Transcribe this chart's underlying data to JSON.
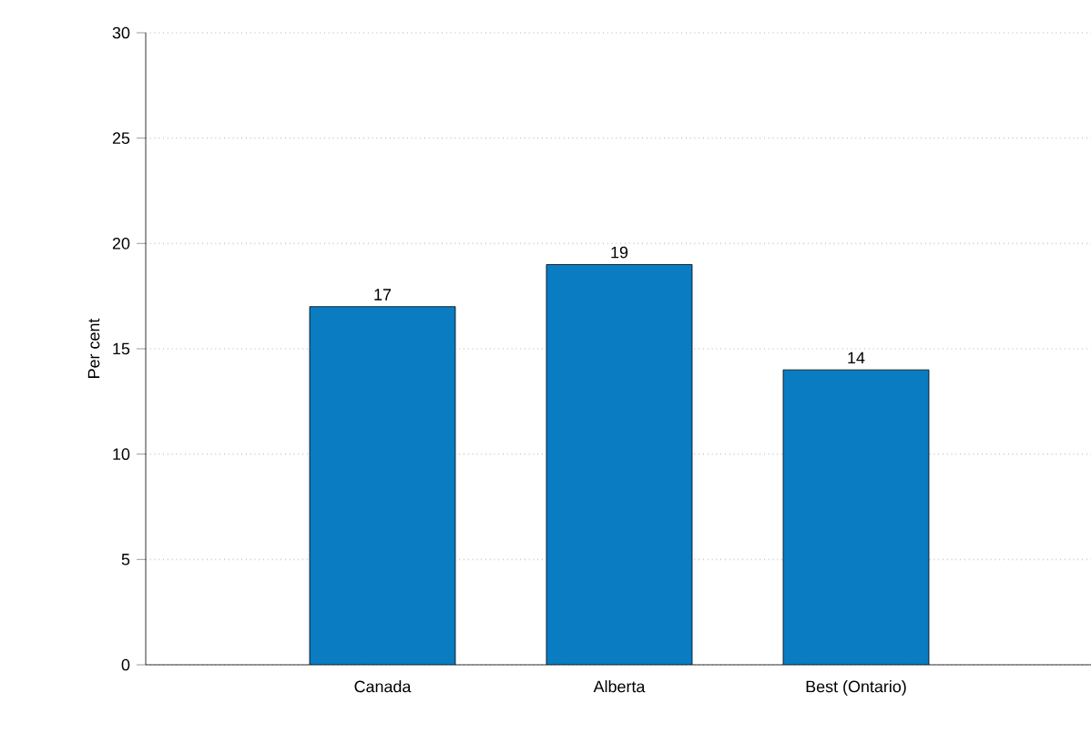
{
  "chart_data": {
    "type": "bar",
    "ylabel": "Per cent",
    "categories": [
      "Canada",
      "Alberta",
      "Best (Ontario)"
    ],
    "values": [
      17,
      19,
      14
    ],
    "color": "#0a7cc1",
    "ylim": [
      0,
      30
    ],
    "yticks": [
      0,
      5,
      10,
      15,
      20,
      25,
      30
    ],
    "grid": "y",
    "data_labels": true
  }
}
